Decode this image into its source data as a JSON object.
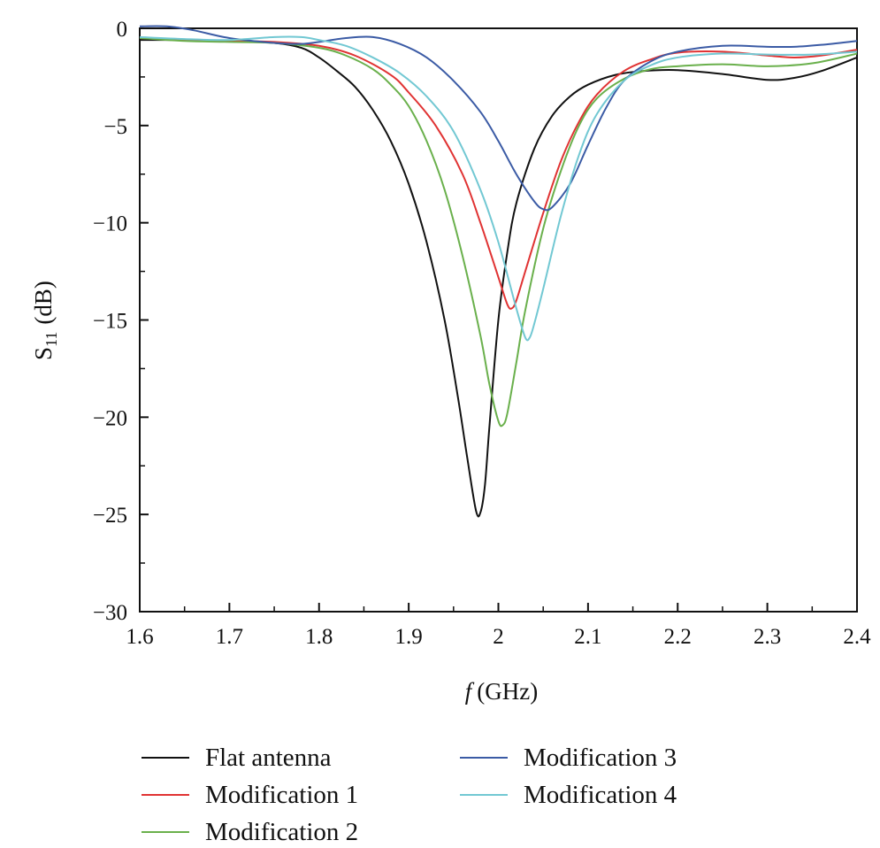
{
  "chart_data": {
    "type": "line",
    "title": "",
    "xlabel": "(GHz)",
    "xlabel_var": "f",
    "ylabel_main": "S",
    "ylabel_sub": "11",
    "ylabel_unit": "(dB)",
    "xlim": [
      1.6,
      2.4
    ],
    "ylim": [
      -30,
      0
    ],
    "x_ticks": [
      1.6,
      1.7,
      1.8,
      1.9,
      2.0,
      2.1,
      2.2,
      2.3,
      2.4
    ],
    "x_tick_labels": [
      "1.6",
      "1.7",
      "1.8",
      "1.9",
      "2",
      "2.1",
      "2.2",
      "2.3",
      "2.4"
    ],
    "y_ticks": [
      0,
      -5,
      -10,
      -15,
      -20,
      -25,
      -30
    ],
    "y_tick_labels": [
      "0",
      "−5",
      "−10",
      "−15",
      "−20",
      "−25",
      "−30"
    ],
    "legend_position": "bottom",
    "series": [
      {
        "name": "Flat antenna",
        "color": "#111111",
        "points": [
          [
            1.6,
            -0.6
          ],
          [
            1.65,
            -0.6
          ],
          [
            1.7,
            -0.65
          ],
          [
            1.75,
            -0.75
          ],
          [
            1.78,
            -1.0
          ],
          [
            1.8,
            -1.5
          ],
          [
            1.82,
            -2.2
          ],
          [
            1.84,
            -3.0
          ],
          [
            1.86,
            -4.2
          ],
          [
            1.88,
            -5.8
          ],
          [
            1.9,
            -8.0
          ],
          [
            1.92,
            -11.0
          ],
          [
            1.94,
            -15.0
          ],
          [
            1.955,
            -19.0
          ],
          [
            1.965,
            -22.0
          ],
          [
            1.975,
            -24.8
          ],
          [
            1.98,
            -24.9
          ],
          [
            1.985,
            -23.5
          ],
          [
            1.99,
            -20.5
          ],
          [
            2.0,
            -15.0
          ],
          [
            2.01,
            -11.5
          ],
          [
            2.02,
            -9.0
          ],
          [
            2.04,
            -6.2
          ],
          [
            2.06,
            -4.5
          ],
          [
            2.08,
            -3.5
          ],
          [
            2.1,
            -2.9
          ],
          [
            2.13,
            -2.4
          ],
          [
            2.16,
            -2.2
          ],
          [
            2.2,
            -2.15
          ],
          [
            2.25,
            -2.35
          ],
          [
            2.3,
            -2.65
          ],
          [
            2.33,
            -2.55
          ],
          [
            2.36,
            -2.2
          ],
          [
            2.4,
            -1.5
          ]
        ]
      },
      {
        "name": "Modification 1",
        "color": "#e03333",
        "points": [
          [
            1.6,
            -0.5
          ],
          [
            1.65,
            -0.6
          ],
          [
            1.7,
            -0.65
          ],
          [
            1.75,
            -0.7
          ],
          [
            1.8,
            -0.9
          ],
          [
            1.84,
            -1.4
          ],
          [
            1.88,
            -2.4
          ],
          [
            1.9,
            -3.3
          ],
          [
            1.93,
            -5.0
          ],
          [
            1.96,
            -7.5
          ],
          [
            1.98,
            -10.0
          ],
          [
            2.0,
            -12.8
          ],
          [
            2.01,
            -14.2
          ],
          [
            2.015,
            -14.4
          ],
          [
            2.02,
            -14.0
          ],
          [
            2.03,
            -12.5
          ],
          [
            2.05,
            -9.5
          ],
          [
            2.07,
            -6.8
          ],
          [
            2.09,
            -4.8
          ],
          [
            2.11,
            -3.4
          ],
          [
            2.14,
            -2.2
          ],
          [
            2.17,
            -1.6
          ],
          [
            2.2,
            -1.25
          ],
          [
            2.25,
            -1.2
          ],
          [
            2.3,
            -1.4
          ],
          [
            2.33,
            -1.5
          ],
          [
            2.36,
            -1.4
          ],
          [
            2.4,
            -1.1
          ]
        ]
      },
      {
        "name": "Modification 2",
        "color": "#6ab04c",
        "points": [
          [
            1.6,
            -0.5
          ],
          [
            1.65,
            -0.65
          ],
          [
            1.7,
            -0.7
          ],
          [
            1.75,
            -0.75
          ],
          [
            1.8,
            -1.0
          ],
          [
            1.83,
            -1.4
          ],
          [
            1.86,
            -2.1
          ],
          [
            1.88,
            -2.9
          ],
          [
            1.9,
            -4.0
          ],
          [
            1.92,
            -5.8
          ],
          [
            1.94,
            -8.3
          ],
          [
            1.96,
            -11.7
          ],
          [
            1.98,
            -15.8
          ],
          [
            1.99,
            -18.3
          ],
          [
            2.0,
            -20.2
          ],
          [
            2.005,
            -20.4
          ],
          [
            2.01,
            -19.8
          ],
          [
            2.02,
            -17.2
          ],
          [
            2.03,
            -14.5
          ],
          [
            2.05,
            -10.3
          ],
          [
            2.07,
            -7.3
          ],
          [
            2.09,
            -5.0
          ],
          [
            2.11,
            -3.6
          ],
          [
            2.14,
            -2.6
          ],
          [
            2.17,
            -2.1
          ],
          [
            2.2,
            -1.95
          ],
          [
            2.25,
            -1.85
          ],
          [
            2.3,
            -1.95
          ],
          [
            2.35,
            -1.8
          ],
          [
            2.4,
            -1.3
          ]
        ]
      },
      {
        "name": "Modification 3",
        "color": "#3b5ba5",
        "points": [
          [
            1.6,
            0.1
          ],
          [
            1.63,
            0.1
          ],
          [
            1.66,
            -0.1
          ],
          [
            1.7,
            -0.5
          ],
          [
            1.75,
            -0.75
          ],
          [
            1.78,
            -0.8
          ],
          [
            1.8,
            -0.7
          ],
          [
            1.83,
            -0.5
          ],
          [
            1.86,
            -0.45
          ],
          [
            1.89,
            -0.8
          ],
          [
            1.92,
            -1.5
          ],
          [
            1.95,
            -2.7
          ],
          [
            1.98,
            -4.3
          ],
          [
            2.0,
            -5.8
          ],
          [
            2.02,
            -7.5
          ],
          [
            2.04,
            -8.9
          ],
          [
            2.05,
            -9.3
          ],
          [
            2.06,
            -9.2
          ],
          [
            2.08,
            -8.0
          ],
          [
            2.1,
            -6.0
          ],
          [
            2.12,
            -4.1
          ],
          [
            2.14,
            -2.7
          ],
          [
            2.17,
            -1.7
          ],
          [
            2.2,
            -1.2
          ],
          [
            2.25,
            -0.9
          ],
          [
            2.3,
            -0.95
          ],
          [
            2.33,
            -0.95
          ],
          [
            2.36,
            -0.85
          ],
          [
            2.4,
            -0.65
          ]
        ]
      },
      {
        "name": "Modification 4",
        "color": "#72c8d3",
        "points": [
          [
            1.6,
            -0.45
          ],
          [
            1.65,
            -0.55
          ],
          [
            1.7,
            -0.6
          ],
          [
            1.75,
            -0.45
          ],
          [
            1.78,
            -0.45
          ],
          [
            1.8,
            -0.6
          ],
          [
            1.83,
            -0.9
          ],
          [
            1.86,
            -1.5
          ],
          [
            1.89,
            -2.3
          ],
          [
            1.92,
            -3.5
          ],
          [
            1.95,
            -5.3
          ],
          [
            1.98,
            -8.3
          ],
          [
            2.0,
            -11.0
          ],
          [
            2.02,
            -14.4
          ],
          [
            2.03,
            -15.9
          ],
          [
            2.035,
            -15.9
          ],
          [
            2.04,
            -15.2
          ],
          [
            2.05,
            -13.4
          ],
          [
            2.07,
            -9.6
          ],
          [
            2.09,
            -6.5
          ],
          [
            2.11,
            -4.4
          ],
          [
            2.14,
            -2.7
          ],
          [
            2.17,
            -1.9
          ],
          [
            2.2,
            -1.5
          ],
          [
            2.25,
            -1.3
          ],
          [
            2.3,
            -1.35
          ],
          [
            2.35,
            -1.35
          ],
          [
            2.4,
            -1.2
          ]
        ]
      }
    ]
  }
}
